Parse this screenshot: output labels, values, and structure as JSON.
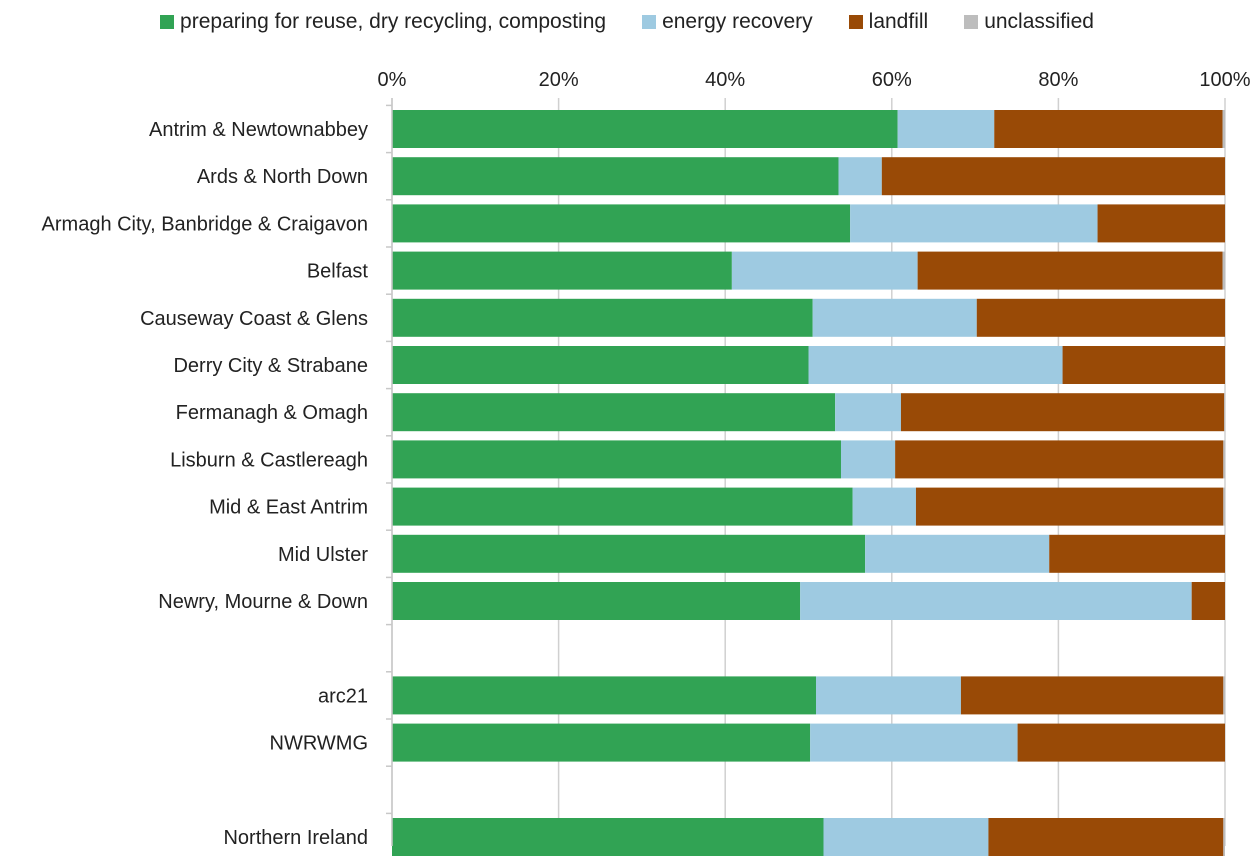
{
  "legend": {
    "items": [
      {
        "label": "preparing for reuse, dry recycling, composting",
        "color": "#31a354"
      },
      {
        "label": "energy recovery",
        "color": "#9ecae1"
      },
      {
        "label": "landfill",
        "color": "#994a06"
      },
      {
        "label": "unclassified",
        "color": "#bdbdbd"
      }
    ]
  },
  "chart_data": {
    "type": "bar",
    "orientation": "horizontal",
    "stacked": true,
    "percent_stacked": true,
    "xlim": [
      0,
      100
    ],
    "x_ticks": [
      "0%",
      "20%",
      "40%",
      "60%",
      "80%",
      "100%"
    ],
    "x_axis_position": "top",
    "grid": true,
    "legend_placement": "top",
    "categories": [
      "Antrim & Newtownabbey",
      "Ards & North Down",
      "Armagh City, Banbridge & Craigavon",
      "Belfast",
      "Causeway Coast & Glens",
      "Derry City & Strabane",
      "Fermanagh & Omagh",
      "Lisburn & Castlereagh",
      "Mid & East Antrim",
      "Mid Ulster",
      "Newry, Mourne & Down",
      "",
      "arc21",
      "NWRWMG",
      "",
      "Northern Ireland"
    ],
    "series": [
      {
        "name": "preparing for reuse, dry recycling, composting",
        "color": "#31a354",
        "values": [
          60.7,
          53.6,
          55.0,
          40.8,
          50.5,
          50.0,
          53.2,
          53.9,
          55.3,
          56.8,
          49.0,
          null,
          50.9,
          50.2,
          null,
          51.8
        ]
      },
      {
        "name": "energy recovery",
        "color": "#9ecae1",
        "values": [
          11.6,
          5.2,
          29.7,
          22.3,
          19.7,
          30.5,
          7.9,
          6.5,
          7.6,
          22.1,
          47.0,
          null,
          17.4,
          24.9,
          null,
          19.8
        ]
      },
      {
        "name": "landfill",
        "color": "#994a06",
        "values": [
          27.4,
          41.2,
          15.3,
          36.6,
          29.8,
          19.5,
          38.8,
          39.4,
          36.9,
          21.1,
          4.0,
          null,
          31.5,
          24.9,
          null,
          28.2
        ]
      },
      {
        "name": "unclassified",
        "color": "#bdbdbd",
        "values": [
          0.3,
          0.0,
          0.0,
          0.3,
          0.0,
          0.0,
          0.1,
          0.2,
          0.2,
          0.0,
          0.0,
          null,
          0.2,
          0.0,
          null,
          0.2
        ]
      }
    ]
  }
}
